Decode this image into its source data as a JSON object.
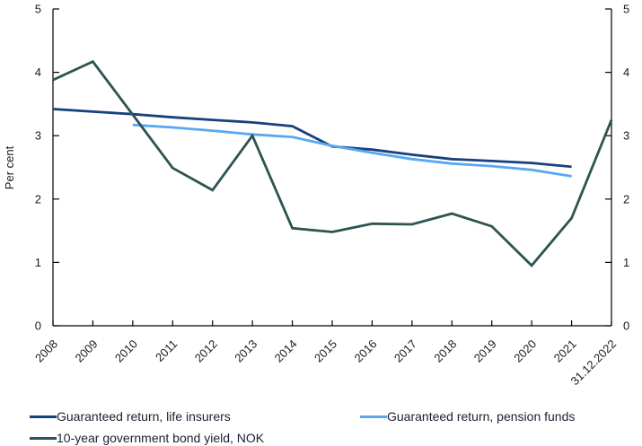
{
  "chart_data": {
    "type": "line",
    "title": "",
    "ylabel": "Per cent",
    "xlabel": "",
    "ylim": [
      0,
      5
    ],
    "yticks": [
      0,
      1,
      2,
      3,
      4,
      5
    ],
    "grid": false,
    "legend_position": "bottom",
    "categories": [
      "2008",
      "2009",
      "2010",
      "2011",
      "2012",
      "2013",
      "2014",
      "2015",
      "2016",
      "2017",
      "2018",
      "2019",
      "2020",
      "2021",
      "31.12.2022"
    ],
    "series": [
      {
        "name": "Guaranteed return, life insurers",
        "color": "#17407e",
        "values": [
          3.42,
          3.38,
          3.34,
          3.29,
          3.25,
          3.21,
          3.15,
          2.83,
          2.78,
          2.7,
          2.63,
          2.6,
          2.57,
          2.51,
          null
        ]
      },
      {
        "name": "Guaranteed return, pension funds",
        "color": "#58a8f0",
        "values": [
          null,
          null,
          3.17,
          3.13,
          3.08,
          3.02,
          2.98,
          2.84,
          2.73,
          2.63,
          2.56,
          2.52,
          2.46,
          2.36,
          null
        ]
      },
      {
        "name": "10-year government bond yield, NOK",
        "color": "#2e5351",
        "values": [
          3.88,
          4.17,
          3.33,
          2.49,
          2.14,
          3.0,
          1.54,
          1.48,
          1.61,
          1.6,
          1.77,
          1.57,
          0.95,
          1.7,
          3.25
        ]
      }
    ],
    "axis_color": "#000000",
    "tick_label_color": "#1a1a1a"
  }
}
